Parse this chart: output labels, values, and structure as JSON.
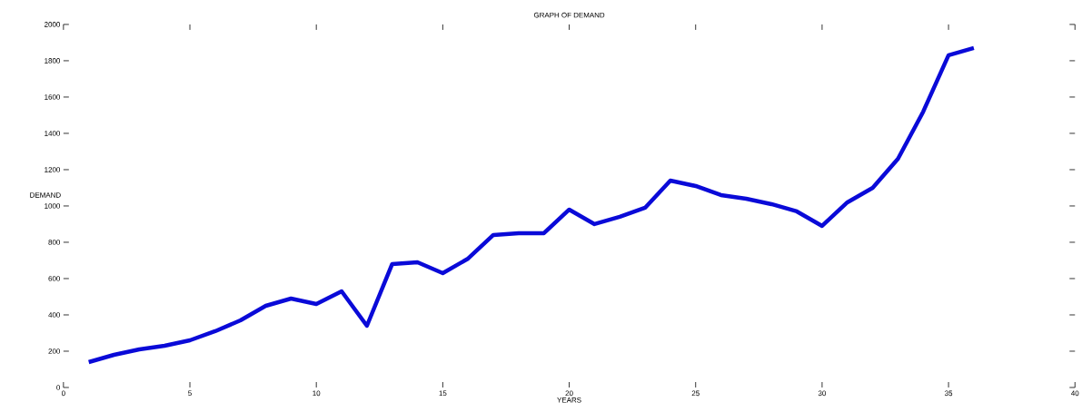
{
  "chart_data": {
    "type": "line",
    "title": "GRAPH OF DEMAND",
    "xlabel": "YEARS",
    "ylabel": "DEMAND",
    "x": [
      1,
      2,
      3,
      4,
      5,
      6,
      7,
      8,
      9,
      10,
      11,
      12,
      13,
      14,
      15,
      16,
      17,
      18,
      19,
      20,
      21,
      22,
      23,
      24,
      25,
      26,
      27,
      28,
      29,
      30,
      31,
      32,
      33,
      34,
      35,
      36
    ],
    "values": [
      140,
      180,
      210,
      230,
      260,
      310,
      370,
      450,
      490,
      460,
      530,
      340,
      680,
      690,
      630,
      710,
      840,
      850,
      850,
      980,
      900,
      940,
      990,
      1140,
      1110,
      1060,
      1040,
      1010,
      970,
      890,
      1020,
      1100,
      1260,
      1520,
      1830,
      1870
    ],
    "color": "#0a0ad8",
    "line_style": "solid",
    "marker": "none",
    "xlim": [
      0,
      40
    ],
    "ylim": [
      0,
      2000
    ],
    "xticks": [
      0,
      5,
      10,
      15,
      20,
      25,
      30,
      35,
      40
    ],
    "yticks": [
      0,
      200,
      400,
      600,
      800,
      1000,
      1200,
      1400,
      1600,
      1800,
      2000
    ]
  }
}
